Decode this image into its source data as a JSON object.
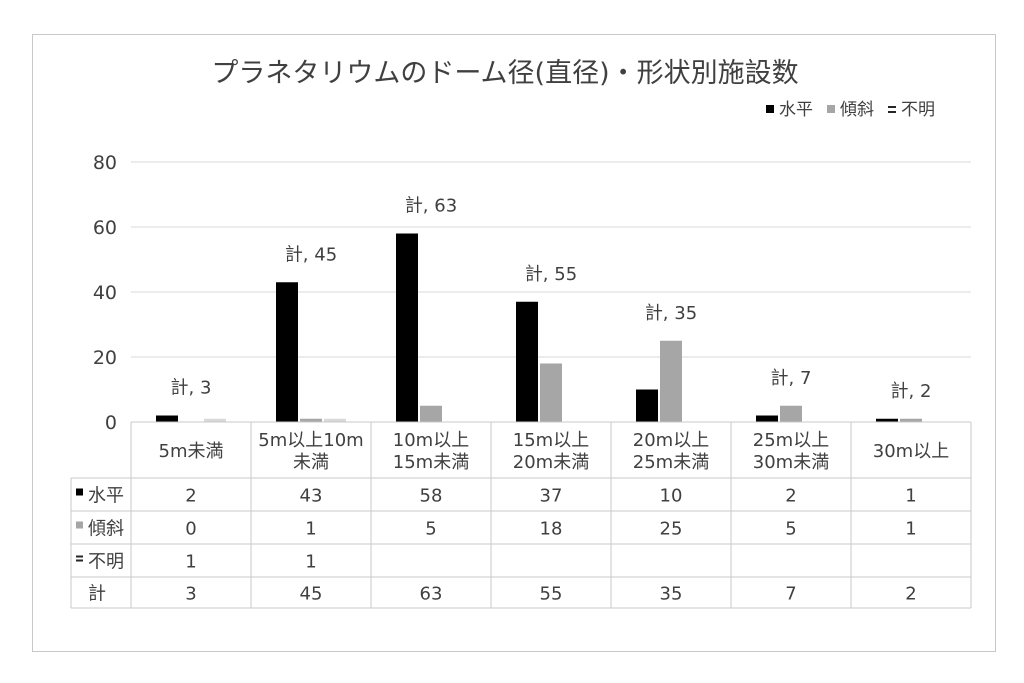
{
  "chart_data": {
    "type": "bar",
    "title": "プラネタリウムのドーム径(直径)・形状別施設数",
    "categories": [
      [
        "5m未満"
      ],
      [
        "5m以上10m",
        "未満"
      ],
      [
        "10m以上",
        "15m未満"
      ],
      [
        "15m以上",
        "20m未満"
      ],
      [
        "20m以上",
        "25m未満"
      ],
      [
        "25m以上",
        "30m未満"
      ],
      [
        "30m以上"
      ]
    ],
    "series": [
      {
        "name": "水平",
        "color": "#000000",
        "values": [
          2,
          43,
          58,
          37,
          10,
          2,
          1
        ]
      },
      {
        "name": "傾斜",
        "color": "#a6a6a6",
        "values": [
          0,
          1,
          5,
          18,
          25,
          5,
          1
        ]
      },
      {
        "name": "不明",
        "color": "#262626",
        "values": [
          1,
          1,
          null,
          null,
          null,
          null,
          null
        ]
      }
    ],
    "total_label": "計",
    "totals": [
      3,
      45,
      63,
      55,
      35,
      7,
      2
    ],
    "total_annotations": [
      "計, 3",
      "計, 45",
      "計, 63",
      "計, 55",
      "計, 35",
      "計, 7",
      "計, 2"
    ],
    "yticks": [
      0,
      20,
      40,
      60,
      80
    ],
    "ylim": [
      0,
      80
    ],
    "grid": true,
    "legend_position": "top-right",
    "data_table": true
  }
}
